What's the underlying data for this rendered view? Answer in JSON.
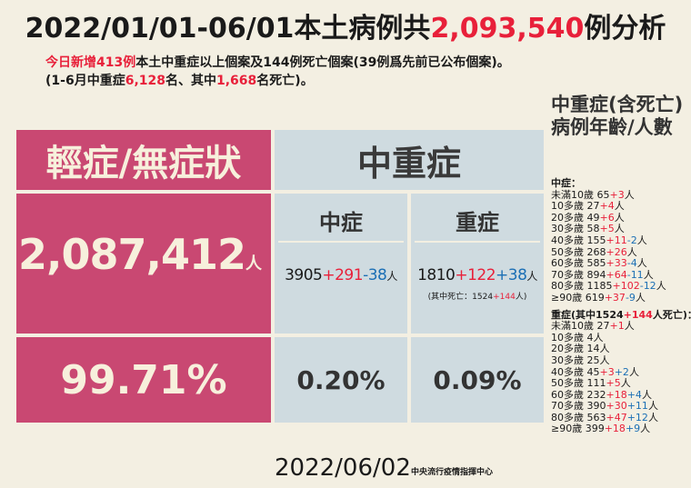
{
  "title": {
    "prefix": "2022/01/01-06/01本土病例共",
    "count": "2,093,540",
    "suffix": "例分析"
  },
  "sub1": {
    "p1": "今日新增413例",
    "p2": "本土中重症以上個案及144例死亡個案(39例爲先前已公布個案)。"
  },
  "sub2": {
    "p1": "(1-6月中重症",
    "v1": "6,128",
    "p2": "名、其中",
    "v2": "1,668",
    "p3": "名死亡)。"
  },
  "mild": {
    "header": "輕症/無症狀",
    "count": "2,087,412",
    "unit": "人",
    "pct": "99.71%"
  },
  "severe_group": {
    "header": "中重症"
  },
  "moderate": {
    "header": "中症",
    "base": "3905",
    "plus": "+291",
    "minus": "-38",
    "unit": "人",
    "pct": "0.20%"
  },
  "severe": {
    "header": "重症",
    "base": "1810",
    "plus": "+122",
    "minus": "+38",
    "unit": "人",
    "note_pre": "(其中死亡：1524",
    "note_plus": "+144",
    "note_unit": "人)",
    "pct": "0.09%"
  },
  "date": "2022/06/02",
  "org": "中央流行疫情指揮中心",
  "side": {
    "title": "中重症(含死亡)病例年齡/人數",
    "mod_head": "中症：",
    "mod_rows": [
      {
        "age": "未滿10歲",
        "base": "65",
        "a": "+3",
        "b": "",
        "unit": "人"
      },
      {
        "age": "10多歲",
        "base": "27",
        "a": "+4",
        "b": "",
        "unit": "人"
      },
      {
        "age": "20多歲",
        "base": "49",
        "a": "+6",
        "b": "",
        "unit": "人"
      },
      {
        "age": "30多歲",
        "base": "58",
        "a": "+5",
        "b": "",
        "unit": "人"
      },
      {
        "age": "40多歲",
        "base": "155",
        "a": "+11",
        "b": "-2",
        "unit": "人"
      },
      {
        "age": "50多歲",
        "base": "268",
        "a": "+26",
        "b": "",
        "unit": "人"
      },
      {
        "age": "60多歲",
        "base": "585",
        "a": "+33",
        "b": "-4",
        "unit": "人"
      },
      {
        "age": "70多歲",
        "base": "894",
        "a": "+64",
        "b": "-11",
        "unit": "人"
      },
      {
        "age": "80多歲",
        "base": "1185",
        "a": "+102",
        "b": "-12",
        "unit": "人"
      },
      {
        "age": "≥90歲",
        "base": "619",
        "a": "+37",
        "b": "-9",
        "unit": "人"
      }
    ],
    "sev_head_pre": "重症(其中1524",
    "sev_head_plus": "+144",
    "sev_head_post": "人死亡)：",
    "sev_rows": [
      {
        "age": "未滿10歲",
        "base": "27",
        "a": "+1",
        "b": "",
        "unit": "人"
      },
      {
        "age": "10多歲",
        "base": "4",
        "a": "",
        "b": "",
        "unit": "人"
      },
      {
        "age": "20多歲",
        "base": "14",
        "a": "",
        "b": "",
        "unit": "人"
      },
      {
        "age": "30多歲",
        "base": "25",
        "a": "",
        "b": "",
        "unit": "人"
      },
      {
        "age": "40多歲",
        "base": "45",
        "a": "+3",
        "b": "+2",
        "unit": "人"
      },
      {
        "age": "50多歲",
        "base": "111",
        "a": "+5",
        "b": "",
        "unit": "人"
      },
      {
        "age": "60多歲",
        "base": "232",
        "a": "+18",
        "b": "+4",
        "unit": "人"
      },
      {
        "age": "70多歲",
        "base": "390",
        "a": "+30",
        "b": "+11",
        "unit": "人"
      },
      {
        "age": "80多歲",
        "base": "563",
        "a": "+47",
        "b": "+12",
        "unit": "人"
      },
      {
        "age": "≥90歲",
        "base": "399",
        "a": "+18",
        "b": "+9",
        "unit": "人"
      }
    ]
  }
}
